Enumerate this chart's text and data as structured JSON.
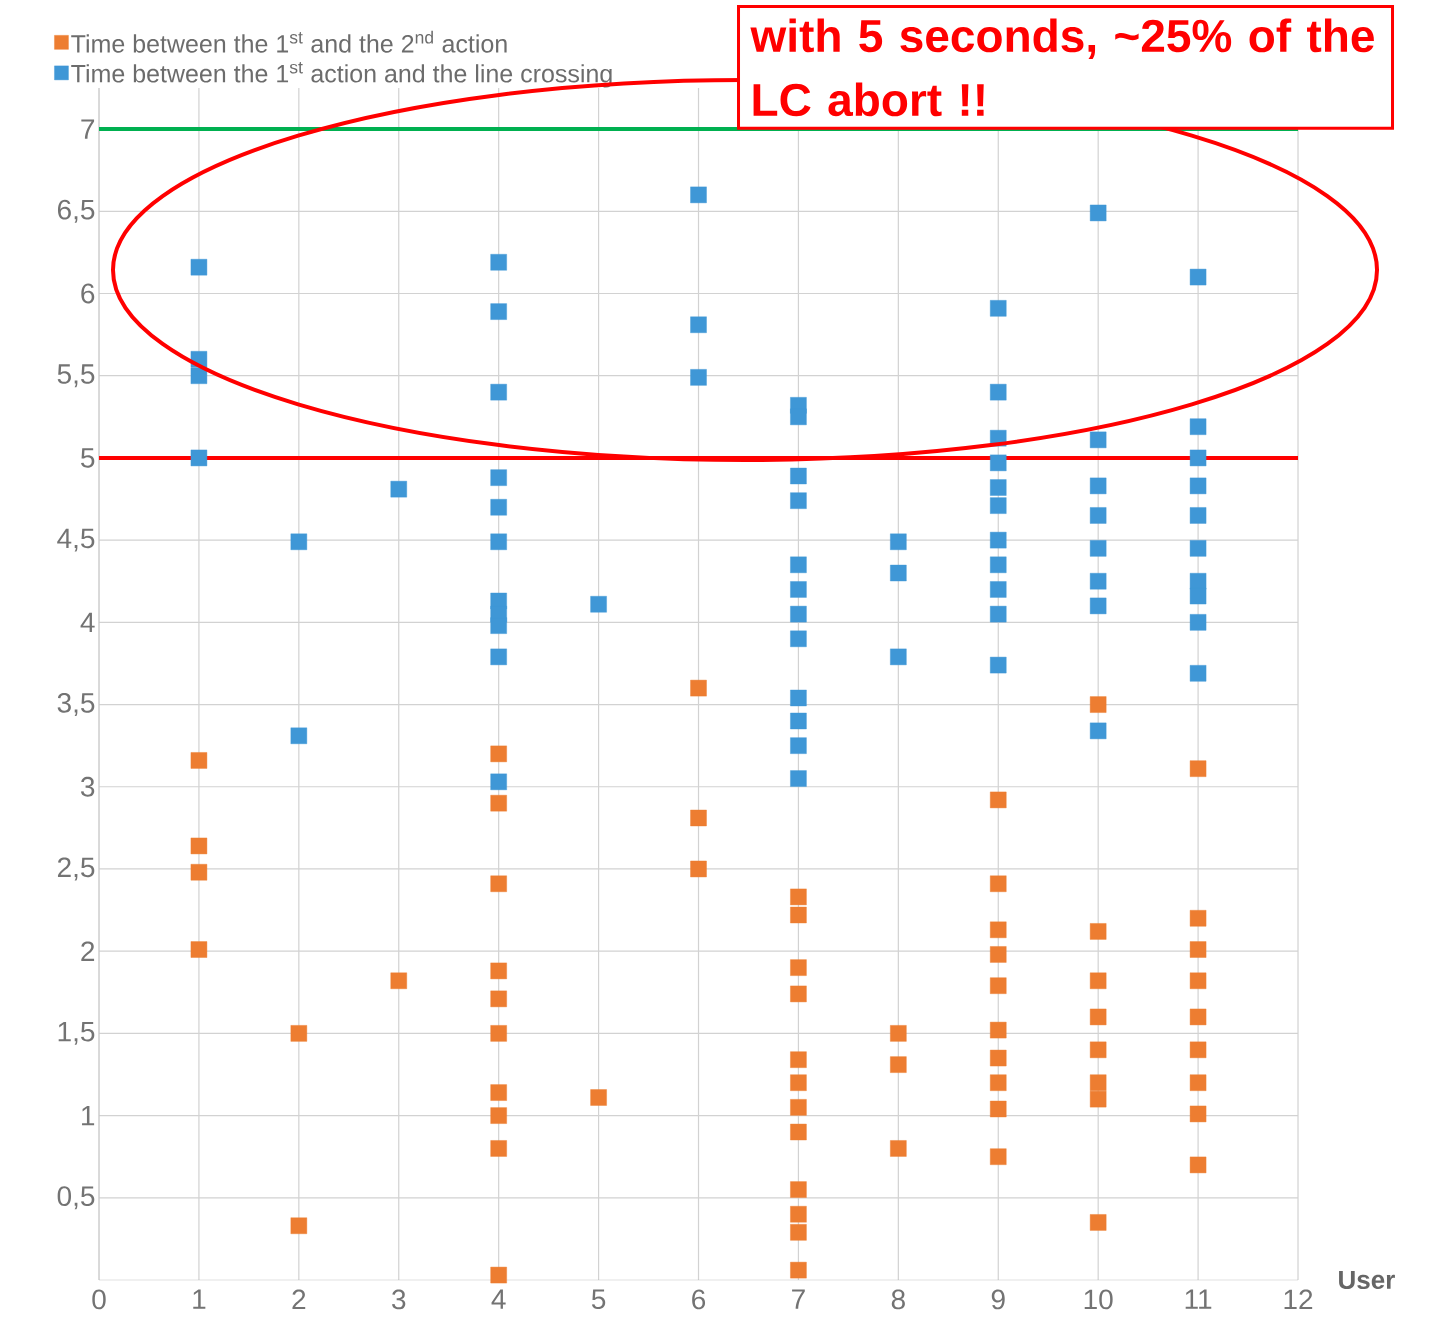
{
  "chart_data": {
    "type": "scatter",
    "xlabel": "User",
    "xlim": [
      0,
      12
    ],
    "ylim": [
      0,
      7.25
    ],
    "xticks": [
      0,
      1,
      2,
      3,
      4,
      5,
      6,
      7,
      8,
      9,
      10,
      11,
      12
    ],
    "yticks": [
      {
        "value": 0.5,
        "label": "0,5"
      },
      1,
      {
        "value": 1.5,
        "label": "1,5"
      },
      2,
      {
        "value": 2.5,
        "label": "2,5"
      },
      3,
      {
        "value": 3.5,
        "label": "3,5"
      },
      4,
      {
        "value": 4.5,
        "label": "4,5"
      },
      5,
      {
        "value": 5.5,
        "label": "5,5"
      },
      6,
      {
        "value": 6.5,
        "label": "6,5"
      },
      7
    ],
    "grid": true,
    "legend": "top left",
    "marker": "square",
    "series": [
      {
        "name": "Time between the 1$^{st}$ and the 2$^{nd}$ action",
        "color": "#ed7d31",
        "x": [
          1,
          1,
          1,
          1,
          2,
          2,
          3,
          4,
          4,
          4,
          4,
          4,
          4,
          4,
          4,
          4,
          4,
          5,
          6,
          6,
          6,
          7,
          7,
          7,
          7,
          7,
          7,
          7,
          7,
          7,
          7,
          7,
          7,
          8,
          8,
          8,
          9,
          9,
          9,
          9,
          9,
          9,
          9,
          9,
          9,
          9,
          10,
          10,
          10,
          10,
          10,
          10,
          10,
          10,
          11,
          11,
          11,
          11,
          11,
          11,
          11,
          11,
          11
        ],
        "values": [
          3.16,
          2.64,
          2.48,
          2.01,
          1.5,
          0.33,
          1.82,
          3.2,
          2.9,
          2.41,
          1.88,
          1.71,
          1.5,
          1.14,
          1.0,
          0.8,
          0.03,
          1.11,
          3.6,
          2.81,
          2.5,
          2.33,
          2.22,
          1.9,
          1.74,
          1.34,
          1.2,
          1.05,
          0.9,
          0.55,
          0.4,
          0.29,
          0.06,
          1.5,
          1.31,
          0.8,
          2.92,
          2.41,
          2.13,
          1.98,
          1.79,
          1.52,
          1.35,
          1.2,
          1.04,
          0.75,
          3.5,
          2.12,
          1.82,
          1.6,
          1.4,
          1.2,
          1.1,
          0.35,
          3.11,
          2.2,
          2.01,
          1.82,
          1.6,
          1.4,
          1.2,
          1.01,
          0.7
        ]
      },
      {
        "name": "Time between the 1$^{st}$ action and the line crossing",
        "color": "#3f97d6",
        "x": [
          1,
          1,
          1,
          1,
          2,
          2,
          3,
          4,
          4,
          4,
          4,
          4,
          4,
          4,
          4,
          4,
          4,
          4,
          5,
          6,
          6,
          6,
          7,
          7,
          7,
          7,
          7,
          7,
          7,
          7,
          7,
          7,
          7,
          7,
          8,
          8,
          8,
          9,
          9,
          9,
          9,
          9,
          9,
          9,
          9,
          9,
          9,
          9,
          10,
          10,
          10,
          10,
          10,
          10,
          10,
          10,
          11,
          11,
          11,
          11,
          11,
          11,
          11,
          11,
          11,
          11
        ],
        "values": [
          6.16,
          5.6,
          5.5,
          5.0,
          4.49,
          3.31,
          4.81,
          6.19,
          5.89,
          5.4,
          4.88,
          4.7,
          4.49,
          4.13,
          4.05,
          3.98,
          3.79,
          3.03,
          4.11,
          6.6,
          5.81,
          5.49,
          5.32,
          5.25,
          4.89,
          4.74,
          4.35,
          4.2,
          4.05,
          3.9,
          3.54,
          3.4,
          3.25,
          3.05,
          4.49,
          4.3,
          3.79,
          5.91,
          5.4,
          5.12,
          4.97,
          4.82,
          4.71,
          4.5,
          4.35,
          4.2,
          4.05,
          3.74,
          6.49,
          5.11,
          4.83,
          4.65,
          4.45,
          4.25,
          4.1,
          3.34,
          6.1,
          5.19,
          5.0,
          4.83,
          4.65,
          4.45,
          4.25,
          4.16,
          4.0,
          3.69
        ]
      }
    ],
    "ref_lines": [
      {
        "axis": "y",
        "value": 7,
        "color": "#00b050"
      },
      {
        "axis": "y",
        "value": 5,
        "color": "#ff0000"
      }
    ],
    "annotations": [
      "with 5 seconds, ~25% of the LC abort !!"
    ]
  }
}
